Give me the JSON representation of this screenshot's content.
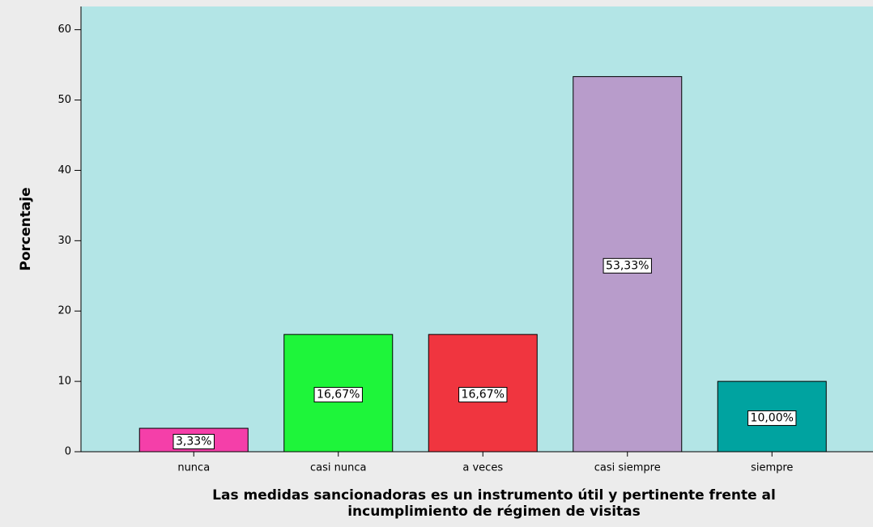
{
  "chart_data": {
    "type": "bar",
    "y_label": "Porcentaje",
    "x_label": [
      "Las medidas sancionadoras es un instrumento útil y pertinente frente al",
      "incumplimiento de régimen de visitas"
    ],
    "categories": [
      "nunca",
      "casi nunca",
      "a veces",
      "casi siempre",
      "siempre"
    ],
    "values": [
      3.33,
      16.67,
      16.67,
      53.33,
      10.0
    ],
    "value_labels": [
      "3,33%",
      "16,67%",
      "16,67%",
      "53,33%",
      "10,00%"
    ],
    "colors": [
      "#f53fa9",
      "#1ef53a",
      "#f0353f",
      "#b89ccb",
      "#00a3a0"
    ],
    "ylim": [
      0,
      63.3
    ],
    "yticks": [
      0,
      10,
      20,
      30,
      40,
      50,
      60
    ]
  }
}
